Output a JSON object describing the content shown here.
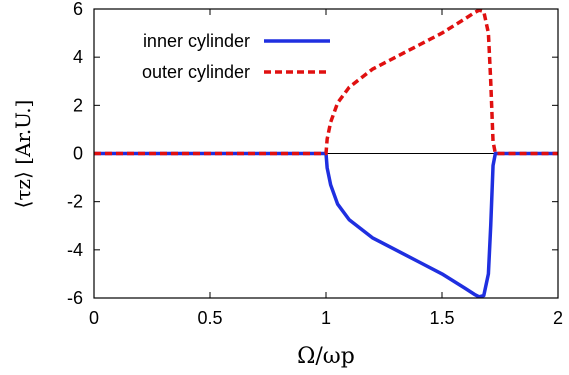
{
  "chart_data": {
    "type": "line",
    "xlabel": "Ω/ωp",
    "ylabel": "⟨τz⟩ [Ar.U.]",
    "xlim": [
      0,
      2
    ],
    "ylim": [
      -6,
      6
    ],
    "xticks": [
      "0",
      "0.5",
      "1",
      "1.5",
      "2"
    ],
    "yticks": [
      "-6",
      "-4",
      "-2",
      "0",
      "2",
      "4",
      "6"
    ],
    "legend_position": "top-left",
    "series": [
      {
        "name": "inner cylinder",
        "color": "#1f2fe0",
        "style": "solid",
        "x": [
          0,
          0.5,
          1.0,
          1.005,
          1.02,
          1.05,
          1.1,
          1.2,
          1.3,
          1.4,
          1.5,
          1.6,
          1.64,
          1.66,
          1.68,
          1.7,
          1.71,
          1.72,
          1.73,
          2.0
        ],
        "y": [
          0,
          0,
          0,
          -0.6,
          -1.3,
          -2.1,
          -2.75,
          -3.5,
          -4.0,
          -4.5,
          -5.0,
          -5.6,
          -5.85,
          -5.95,
          -5.9,
          -5.0,
          -3.0,
          -0.5,
          0,
          0
        ]
      },
      {
        "name": "outer cylinder",
        "color": "#e01010",
        "style": "dashed",
        "x": [
          0,
          0.5,
          1.0,
          1.005,
          1.02,
          1.05,
          1.1,
          1.2,
          1.3,
          1.4,
          1.5,
          1.6,
          1.64,
          1.66,
          1.68,
          1.7,
          1.71,
          1.72,
          1.73,
          2.0
        ],
        "y": [
          0,
          0,
          0,
          0.6,
          1.3,
          2.1,
          2.75,
          3.5,
          4.0,
          4.5,
          5.0,
          5.6,
          5.85,
          5.95,
          5.9,
          5.0,
          3.0,
          0.5,
          0,
          0
        ]
      }
    ]
  }
}
